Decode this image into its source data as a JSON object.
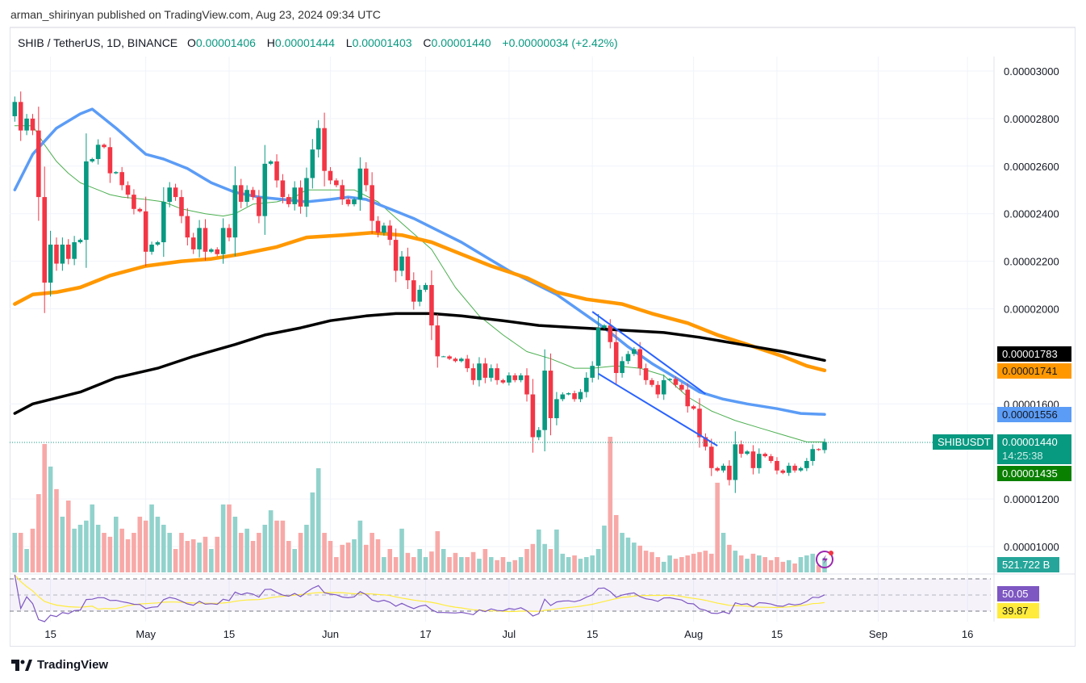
{
  "published": "arman_shirinyan published on TradingView.com, Aug 23, 2024 09:34 UTC",
  "legend": {
    "symbol": "SHIB / TetherUS, 1D, BINANCE",
    "o_label": "O",
    "o": "0.00001406",
    "h_label": "H",
    "h": "0.00001444",
    "l_label": "L",
    "l": "0.00001403",
    "c_label": "C",
    "c": "0.00001440",
    "change": "+0.00000034 (+2.42%)"
  },
  "colors": {
    "up": "#089981",
    "down": "#F23645",
    "ma_green": "#4CAF50",
    "ma_blue": "#5B9CF6",
    "ma_orange": "#FF9800",
    "ma_black": "#000000",
    "rsi": "#7E57C2",
    "rsi_ma": "#FFEB3B",
    "trendline": "#2962FF"
  },
  "chart_data": {
    "type": "candlestick",
    "last_date": "2024-08-23",
    "first_open": 2.81e-05,
    "closes": [
      2.87e-05,
      2.75e-05,
      2.8e-05,
      2.75e-05,
      2.47e-05,
      2.11e-05,
      2.27e-05,
      2.19e-05,
      2.27e-05,
      2.21e-05,
      2.28e-05,
      2.29e-05,
      2.62e-05,
      2.63e-05,
      2.69e-05,
      2.68e-05,
      2.57e-05,
      2.575e-05,
      2.52e-05,
      2.48e-05,
      2.42e-05,
      2.41e-05,
      2.24e-05,
      2.27e-05,
      2.28e-05,
      2.45e-05,
      2.51e-05,
      2.47e-05,
      2.39e-05,
      2.3e-05,
      2.25e-05,
      2.34e-05,
      2.24e-05,
      2.25e-05,
      2.23e-05,
      2.34e-05,
      2.3e-05,
      2.52e-05,
      2.45e-05,
      2.5e-05,
      2.47e-05,
      2.39e-05,
      2.61e-05,
      2.62e-05,
      2.54e-05,
      2.47e-05,
      2.44e-05,
      2.51e-05,
      2.43e-05,
      2.55e-05,
      2.67e-05,
      2.76e-05,
      2.58e-05,
      2.54e-05,
      2.52e-05,
      2.46e-05,
      2.44e-05,
      2.46e-05,
      2.59e-05,
      2.52e-05,
      2.37e-05,
      2.32e-05,
      2.35e-05,
      2.29e-05,
      2.16e-05,
      2.22e-05,
      2.12e-05,
      2.03e-05,
      2.08e-05,
      2.1e-05,
      1.93e-05,
      1.8e-05,
      1.8e-05,
      1.79e-05,
      1.78e-05,
      1.79e-05,
      1.75e-05,
      1.7e-05,
      1.77e-05,
      1.71e-05,
      1.75e-05,
      1.7e-05,
      1.69e-05,
      1.72e-05,
      1.7e-05,
      1.72e-05,
      1.64e-05,
      1.46e-05,
      1.49e-05,
      1.74e-05,
      1.54e-05,
      1.62e-05,
      1.64e-05,
      1.645e-05,
      1.62e-05,
      1.65e-05,
      1.71e-05,
      1.76e-05,
      1.92e-05,
      1.93e-05,
      1.86e-05,
      1.73e-05,
      1.78e-05,
      1.81e-05,
      1.83e-05,
      1.75e-05,
      1.7e-05,
      1.68e-05,
      1.64e-05,
      1.7e-05,
      1.705e-05,
      1.68e-05,
      1.66e-05,
      1.59e-05,
      1.58e-05,
      1.46e-05,
      1.42e-05,
      1.33e-05,
      1.32e-05,
      1.34e-05,
      1.28e-05,
      1.43e-05,
      1.39e-05,
      1.4e-05,
      1.33e-05,
      1.39e-05,
      1.38e-05,
      1.36e-05,
      1.32e-05,
      1.31e-05,
      1.34e-05,
      1.32e-05,
      1.33e-05,
      1.36e-05,
      1.41e-05,
      1.406e-05,
      1.44e-05
    ],
    "volumes_b": [
      1420,
      1420,
      840,
      1570,
      2810,
      4610,
      3800,
      2990,
      2000,
      2580,
      1570,
      1710,
      1860,
      2440,
      1710,
      1420,
      1280,
      2000,
      1570,
      1190,
      1420,
      2000,
      1860,
      2440,
      2000,
      1710,
      1420,
      840,
      1420,
      1130,
      1190,
      1070,
      1280,
      840,
      1280,
      2440,
      2440,
      2000,
      1420,
      1570,
      1130,
      1420,
      1710,
      2230,
      1860,
      1860,
      1130,
      840,
      1420,
      1710,
      2870,
      3740,
      1420,
      1130,
      550,
      990,
      1070,
      1190,
      1860,
      990,
      1420,
      1190,
      550,
      840,
      550,
      1570,
      700,
      550,
      840,
      550,
      750,
      1480,
      840,
      550,
      700,
      550,
      550,
      730,
      490,
      840,
      550,
      440,
      550,
      380,
      440,
      550,
      840,
      1020,
      1540,
      1020,
      840,
      1540,
      670,
      550,
      610,
      490,
      550,
      610,
      840,
      1680,
      4870,
      2060,
      1420,
      1250,
      1070,
      960,
      780,
      730,
      550,
      380,
      610,
      490,
      550,
      610,
      670,
      730,
      780,
      670,
      3220,
      1420,
      990,
      780,
      610,
      490,
      670,
      610,
      550,
      440,
      550,
      380,
      440,
      320,
      550,
      610,
      670,
      260,
      521.722
    ],
    "moving_averages": [
      {
        "color": "#4CAF50",
        "points": [
          [
            "2024-04-09",
            2.77e-05
          ],
          [
            "2024-04-12",
            2.77e-05
          ],
          [
            "2024-04-14",
            2.69e-05
          ],
          [
            "2024-04-16",
            2.62e-05
          ],
          [
            "2024-04-18",
            2.57e-05
          ],
          [
            "2024-04-20",
            2.53e-05
          ],
          [
            "2024-04-22",
            2.51e-05
          ],
          [
            "2024-04-25",
            2.48e-05
          ],
          [
            "2024-04-27",
            2.47e-05
          ],
          [
            "2024-05-01",
            2.46e-05
          ],
          [
            "2024-05-04",
            2.45e-05
          ],
          [
            "2024-05-07",
            2.42e-05
          ],
          [
            "2024-05-11",
            2.4e-05
          ],
          [
            "2024-05-14",
            2.39e-05
          ],
          [
            "2024-05-16",
            2.4e-05
          ],
          [
            "2024-05-19",
            2.44e-05
          ],
          [
            "2024-05-23",
            2.45e-05
          ],
          [
            "2024-05-26",
            2.47e-05
          ],
          [
            "2024-05-28",
            2.5e-05
          ],
          [
            "2024-06-01",
            2.5e-05
          ],
          [
            "2024-06-05",
            2.5e-05
          ],
          [
            "2024-06-09",
            2.45e-05
          ],
          [
            "2024-06-13",
            2.36e-05
          ],
          [
            "2024-06-18",
            2.25e-05
          ],
          [
            "2024-06-22",
            2.09e-05
          ],
          [
            "2024-06-26",
            1.97e-05
          ],
          [
            "2024-06-30",
            1.89e-05
          ],
          [
            "2024-07-04",
            1.82e-05
          ],
          [
            "2024-07-08",
            1.79e-05
          ],
          [
            "2024-07-12",
            1.75e-05
          ],
          [
            "2024-07-15",
            1.75e-05
          ],
          [
            "2024-07-19",
            1.76e-05
          ],
          [
            "2024-07-23",
            1.75e-05
          ],
          [
            "2024-07-27",
            1.72e-05
          ],
          [
            "2024-07-31",
            1.63e-05
          ],
          [
            "2024-08-04",
            1.57e-05
          ],
          [
            "2024-08-08",
            1.53e-05
          ],
          [
            "2024-08-12",
            1.5e-05
          ],
          [
            "2024-08-16",
            1.47e-05
          ],
          [
            "2024-08-20",
            1.44e-05
          ],
          [
            "2024-08-23",
            1.44e-05
          ]
        ]
      },
      {
        "color": "#5B9CF6",
        "value_label": "0.00001556",
        "points": [
          [
            "2024-04-09",
            2.5e-05
          ],
          [
            "2024-04-12",
            2.65e-05
          ],
          [
            "2024-04-16",
            2.76e-05
          ],
          [
            "2024-04-20",
            2.82e-05
          ],
          [
            "2024-04-22",
            2.84e-05
          ],
          [
            "2024-04-26",
            2.76e-05
          ],
          [
            "2024-05-01",
            2.65e-05
          ],
          [
            "2024-05-04",
            2.63e-05
          ],
          [
            "2024-05-08",
            2.59e-05
          ],
          [
            "2024-05-12",
            2.53e-05
          ],
          [
            "2024-05-16",
            2.49e-05
          ],
          [
            "2024-05-20",
            2.47e-05
          ],
          [
            "2024-05-24",
            2.46e-05
          ],
          [
            "2024-05-28",
            2.45e-05
          ],
          [
            "2024-06-01",
            2.46e-05
          ],
          [
            "2024-06-04",
            2.47e-05
          ],
          [
            "2024-06-07",
            2.46e-05
          ],
          [
            "2024-06-11",
            2.42e-05
          ],
          [
            "2024-06-15",
            2.38e-05
          ],
          [
            "2024-06-19",
            2.33e-05
          ],
          [
            "2024-06-23",
            2.28e-05
          ],
          [
            "2024-06-27",
            2.22e-05
          ],
          [
            "2024-07-01",
            2.16e-05
          ],
          [
            "2024-07-05",
            2.11e-05
          ],
          [
            "2024-07-09",
            2.06e-05
          ],
          [
            "2024-07-13",
            1.99e-05
          ],
          [
            "2024-07-17",
            1.92e-05
          ],
          [
            "2024-07-21",
            1.84e-05
          ],
          [
            "2024-07-25",
            1.77e-05
          ],
          [
            "2024-07-29",
            1.71e-05
          ],
          [
            "2024-08-02",
            1.65e-05
          ],
          [
            "2024-08-06",
            1.62e-05
          ],
          [
            "2024-08-10",
            1.6e-05
          ],
          [
            "2024-08-15",
            1.58e-05
          ],
          [
            "2024-08-19",
            1.56e-05
          ],
          [
            "2024-08-23",
            1.556e-05
          ]
        ]
      },
      {
        "color": "#FF9800",
        "value_label": "0.00001741",
        "points": [
          [
            "2024-04-09",
            2.02e-05
          ],
          [
            "2024-04-12",
            2.06e-05
          ],
          [
            "2024-04-16",
            2.07e-05
          ],
          [
            "2024-04-20",
            2.09e-05
          ],
          [
            "2024-04-25",
            2.14e-05
          ],
          [
            "2024-05-01",
            2.18e-05
          ],
          [
            "2024-05-07",
            2.2e-05
          ],
          [
            "2024-05-12",
            2.21e-05
          ],
          [
            "2024-05-17",
            2.23e-05
          ],
          [
            "2024-05-23",
            2.26e-05
          ],
          [
            "2024-05-28",
            2.3e-05
          ],
          [
            "2024-06-03",
            2.31e-05
          ],
          [
            "2024-06-08",
            2.32e-05
          ],
          [
            "2024-06-13",
            2.31e-05
          ],
          [
            "2024-06-18",
            2.28e-05
          ],
          [
            "2024-06-23",
            2.23e-05
          ],
          [
            "2024-06-28",
            2.18e-05
          ],
          [
            "2024-07-04",
            2.13e-05
          ],
          [
            "2024-07-09",
            2.07e-05
          ],
          [
            "2024-07-14",
            2.04e-05
          ],
          [
            "2024-07-20",
            2.02e-05
          ],
          [
            "2024-07-25",
            1.98e-05
          ],
          [
            "2024-07-31",
            1.94e-05
          ],
          [
            "2024-08-05",
            1.89e-05
          ],
          [
            "2024-08-10",
            1.85e-05
          ],
          [
            "2024-08-16",
            1.8e-05
          ],
          [
            "2024-08-20",
            1.76e-05
          ],
          [
            "2024-08-23",
            1.741e-05
          ]
        ]
      },
      {
        "color": "#000000",
        "value_label": "0.00001783",
        "points": [
          [
            "2024-04-09",
            1.56e-05
          ],
          [
            "2024-04-12",
            1.6e-05
          ],
          [
            "2024-04-20",
            1.65e-05
          ],
          [
            "2024-04-26",
            1.71e-05
          ],
          [
            "2024-05-03",
            1.75e-05
          ],
          [
            "2024-05-09",
            1.8e-05
          ],
          [
            "2024-05-16",
            1.85e-05
          ],
          [
            "2024-05-21",
            1.89e-05
          ],
          [
            "2024-05-27",
            1.92e-05
          ],
          [
            "2024-06-01",
            1.95e-05
          ],
          [
            "2024-06-07",
            1.97e-05
          ],
          [
            "2024-06-12",
            1.98e-05
          ],
          [
            "2024-06-18",
            1.98e-05
          ],
          [
            "2024-06-23",
            1.97e-05
          ],
          [
            "2024-06-30",
            1.95e-05
          ],
          [
            "2024-07-06",
            1.93e-05
          ],
          [
            "2024-07-13",
            1.92e-05
          ],
          [
            "2024-07-20",
            1.91e-05
          ],
          [
            "2024-07-27",
            1.9e-05
          ],
          [
            "2024-08-02",
            1.88e-05
          ],
          [
            "2024-08-09",
            1.85e-05
          ],
          [
            "2024-08-16",
            1.82e-05
          ],
          [
            "2024-08-23",
            1.783e-05
          ]
        ]
      }
    ],
    "trendlines": [
      [
        [
          "2024-07-15",
          1.988e-05
        ],
        [
          "2024-08-03",
          1.642e-05
        ]
      ],
      [
        [
          "2024-07-16",
          1.727e-05
        ],
        [
          "2024-08-05",
          1.424e-05
        ]
      ]
    ],
    "price_axis": [
      "0.00003000",
      "0.00002800",
      "0.00002600",
      "0.00002400",
      "0.00002200",
      "0.00002000",
      "0.00001600",
      "0.00001200",
      "0.00001000"
    ],
    "time_axis": [
      {
        "label": "15",
        "date": "2024-04-15"
      },
      {
        "label": "May",
        "date": "2024-05-01"
      },
      {
        "label": "15",
        "date": "2024-05-15"
      },
      {
        "label": "Jun",
        "date": "2024-06-01"
      },
      {
        "label": "17",
        "date": "2024-06-17"
      },
      {
        "label": "Jul",
        "date": "2024-07-01"
      },
      {
        "label": "15",
        "date": "2024-07-15"
      },
      {
        "label": "Aug",
        "date": "2024-08-01"
      },
      {
        "label": "15",
        "date": "2024-08-15"
      },
      {
        "label": "Sep",
        "date": "2024-09-01"
      },
      {
        "label": "16",
        "date": "2024-09-16"
      }
    ],
    "rsi_bands": [
      70,
      50,
      30
    ]
  },
  "tags": {
    "ma_black": "0.00001783",
    "ma_orange": "0.00001741",
    "ma_blue": "0.00001556",
    "symbol": "SHIBUSDT",
    "last_price": "0.00001440",
    "countdown": "14:25:38",
    "prev_price": "0.00001435",
    "volume": "521.722 B",
    "rsi": "50.05",
    "rsi_ma": "39.87"
  },
  "footer": {
    "brand": "TradingView"
  }
}
